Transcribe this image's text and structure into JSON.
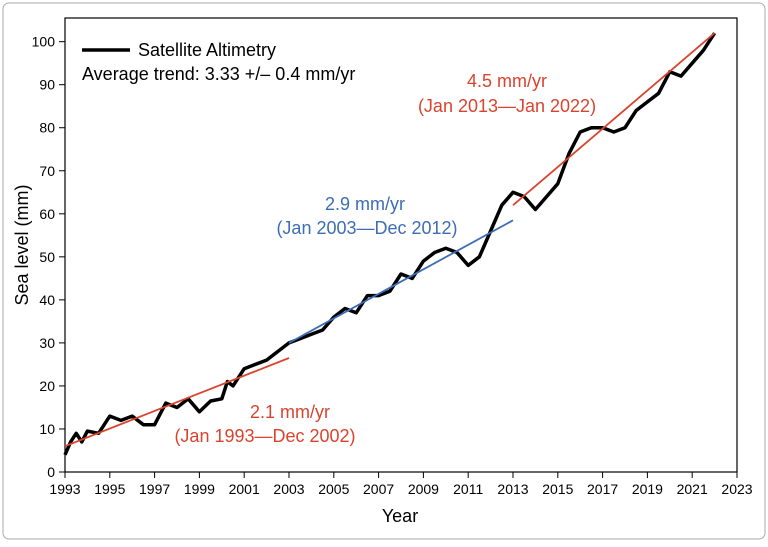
{
  "chart_data": {
    "type": "line",
    "legend_subtitle": "Average trend: 3.33 +/– 0.4 mm/yr",
    "xlabel": "Year",
    "ylabel": "Sea level (mm)",
    "xlim": [
      1993,
      2023
    ],
    "ylim": [
      0,
      105.5
    ],
    "xticks": [
      1993,
      1995,
      1997,
      1999,
      2001,
      2003,
      2005,
      2007,
      2009,
      2011,
      2013,
      2015,
      2017,
      2019,
      2021,
      2023
    ],
    "yticks": [
      0,
      10,
      20,
      30,
      40,
      50,
      60,
      70,
      80,
      90,
      100
    ],
    "grid": false,
    "series": [
      {
        "name": "Satellite Altimetry",
        "color": "#000000",
        "x": [
          1993.0,
          1993.25,
          1993.5,
          1993.75,
          1994.0,
          1994.5,
          1995.0,
          1995.5,
          1996.0,
          1996.5,
          1997.0,
          1997.5,
          1998.0,
          1998.5,
          1999.0,
          1999.5,
          2000.0,
          2000.25,
          2000.5,
          2001.0,
          2001.5,
          2002.0,
          2002.5,
          2003.0,
          2003.5,
          2004.0,
          2004.5,
          2005.0,
          2005.5,
          2006.0,
          2006.5,
          2007.0,
          2007.5,
          2008.0,
          2008.5,
          2009.0,
          2009.5,
          2010.0,
          2010.5,
          2011.0,
          2011.5,
          2012.0,
          2012.5,
          2013.0,
          2013.5,
          2014.0,
          2014.5,
          2015.0,
          2015.5,
          2016.0,
          2016.5,
          2017.0,
          2017.5,
          2018.0,
          2018.5,
          2019.0,
          2019.5,
          2020.0,
          2020.5,
          2021.0,
          2021.5,
          2022.0
        ],
        "values": [
          4,
          7,
          9,
          7,
          9.5,
          9,
          13,
          12,
          13,
          11,
          11,
          16,
          15,
          17,
          14,
          16.5,
          17,
          21,
          20,
          24,
          25,
          26,
          28,
          30,
          31,
          32,
          33,
          36,
          38,
          37,
          41,
          41,
          42,
          46,
          45,
          49,
          51,
          52,
          51,
          48,
          50,
          56,
          62,
          65,
          64,
          61,
          64,
          67,
          74,
          79,
          80,
          80,
          79,
          80,
          84,
          86,
          88,
          93,
          92,
          95,
          98,
          102
        ]
      }
    ],
    "trends": [
      {
        "label": "2.1 mm/yr",
        "period": "(Jan 1993—Dec 2002)",
        "color": "#d9442e",
        "x": [
          1993,
          2003
        ],
        "values": [
          6,
          26.5
        ]
      },
      {
        "label": "2.9 mm/yr",
        "period": "(Jan 2003—Dec 2012)",
        "color": "#3d6db5",
        "x": [
          2003,
          2013
        ],
        "values": [
          30,
          58.5
        ]
      },
      {
        "label": "4.5 mm/yr",
        "period": "(Jan 2013—Jan 2022)",
        "color": "#d9442e",
        "x": [
          2013,
          2022
        ],
        "values": [
          62,
          102
        ]
      }
    ]
  }
}
